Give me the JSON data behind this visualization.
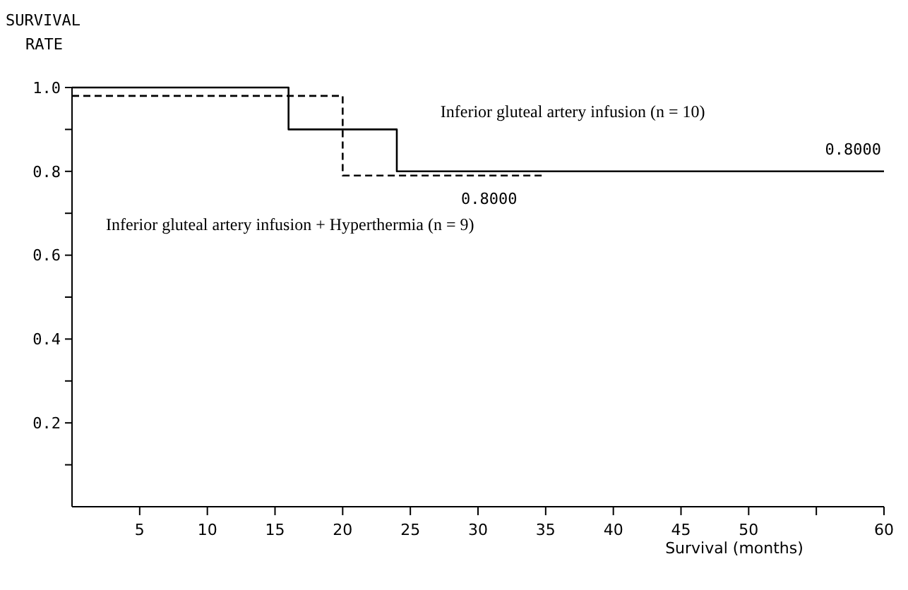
{
  "chart_data": {
    "type": "step",
    "xlabel": "Survival (months)",
    "ylabel": "SURVIVAL RATE",
    "xlim": [
      0,
      60
    ],
    "ylim": [
      0,
      1
    ],
    "xticks": [
      5,
      10,
      15,
      20,
      25,
      30,
      35,
      40,
      45,
      50,
      {
        "value": 55,
        "label": null
      },
      60
    ],
    "yticks": [
      {
        "value": 0.1,
        "label": null
      },
      0.2,
      {
        "value": 0.3,
        "label": null
      },
      0.4,
      {
        "value": 0.5,
        "label": null
      },
      0.6,
      {
        "value": 0.7,
        "label": null
      },
      0.8,
      {
        "value": 0.9,
        "label": null
      },
      {
        "value": 1,
        "label": "1.0"
      }
    ],
    "grid": false,
    "series": [
      {
        "name": "Inferior gluteal artery infusion (n = 10)",
        "color": "#000000",
        "line_style": "solid",
        "x": [
          0,
          16,
          24,
          60
        ],
        "values": [
          1,
          0.9,
          0.8,
          0.8
        ]
      },
      {
        "name": "Inferior gluteal artery infusion + Hyperthermia (n = 9)",
        "color": "#000000",
        "line_style": "dashed",
        "x": [
          0,
          20,
          35
        ],
        "values": [
          0.98,
          0.79,
          0.79
        ]
      }
    ],
    "annotations": [
      {
        "text": "0.8000",
        "x": 60,
        "y": 0.8
      },
      {
        "text": "0.8000",
        "x": 35,
        "y": 0.79
      }
    ]
  }
}
